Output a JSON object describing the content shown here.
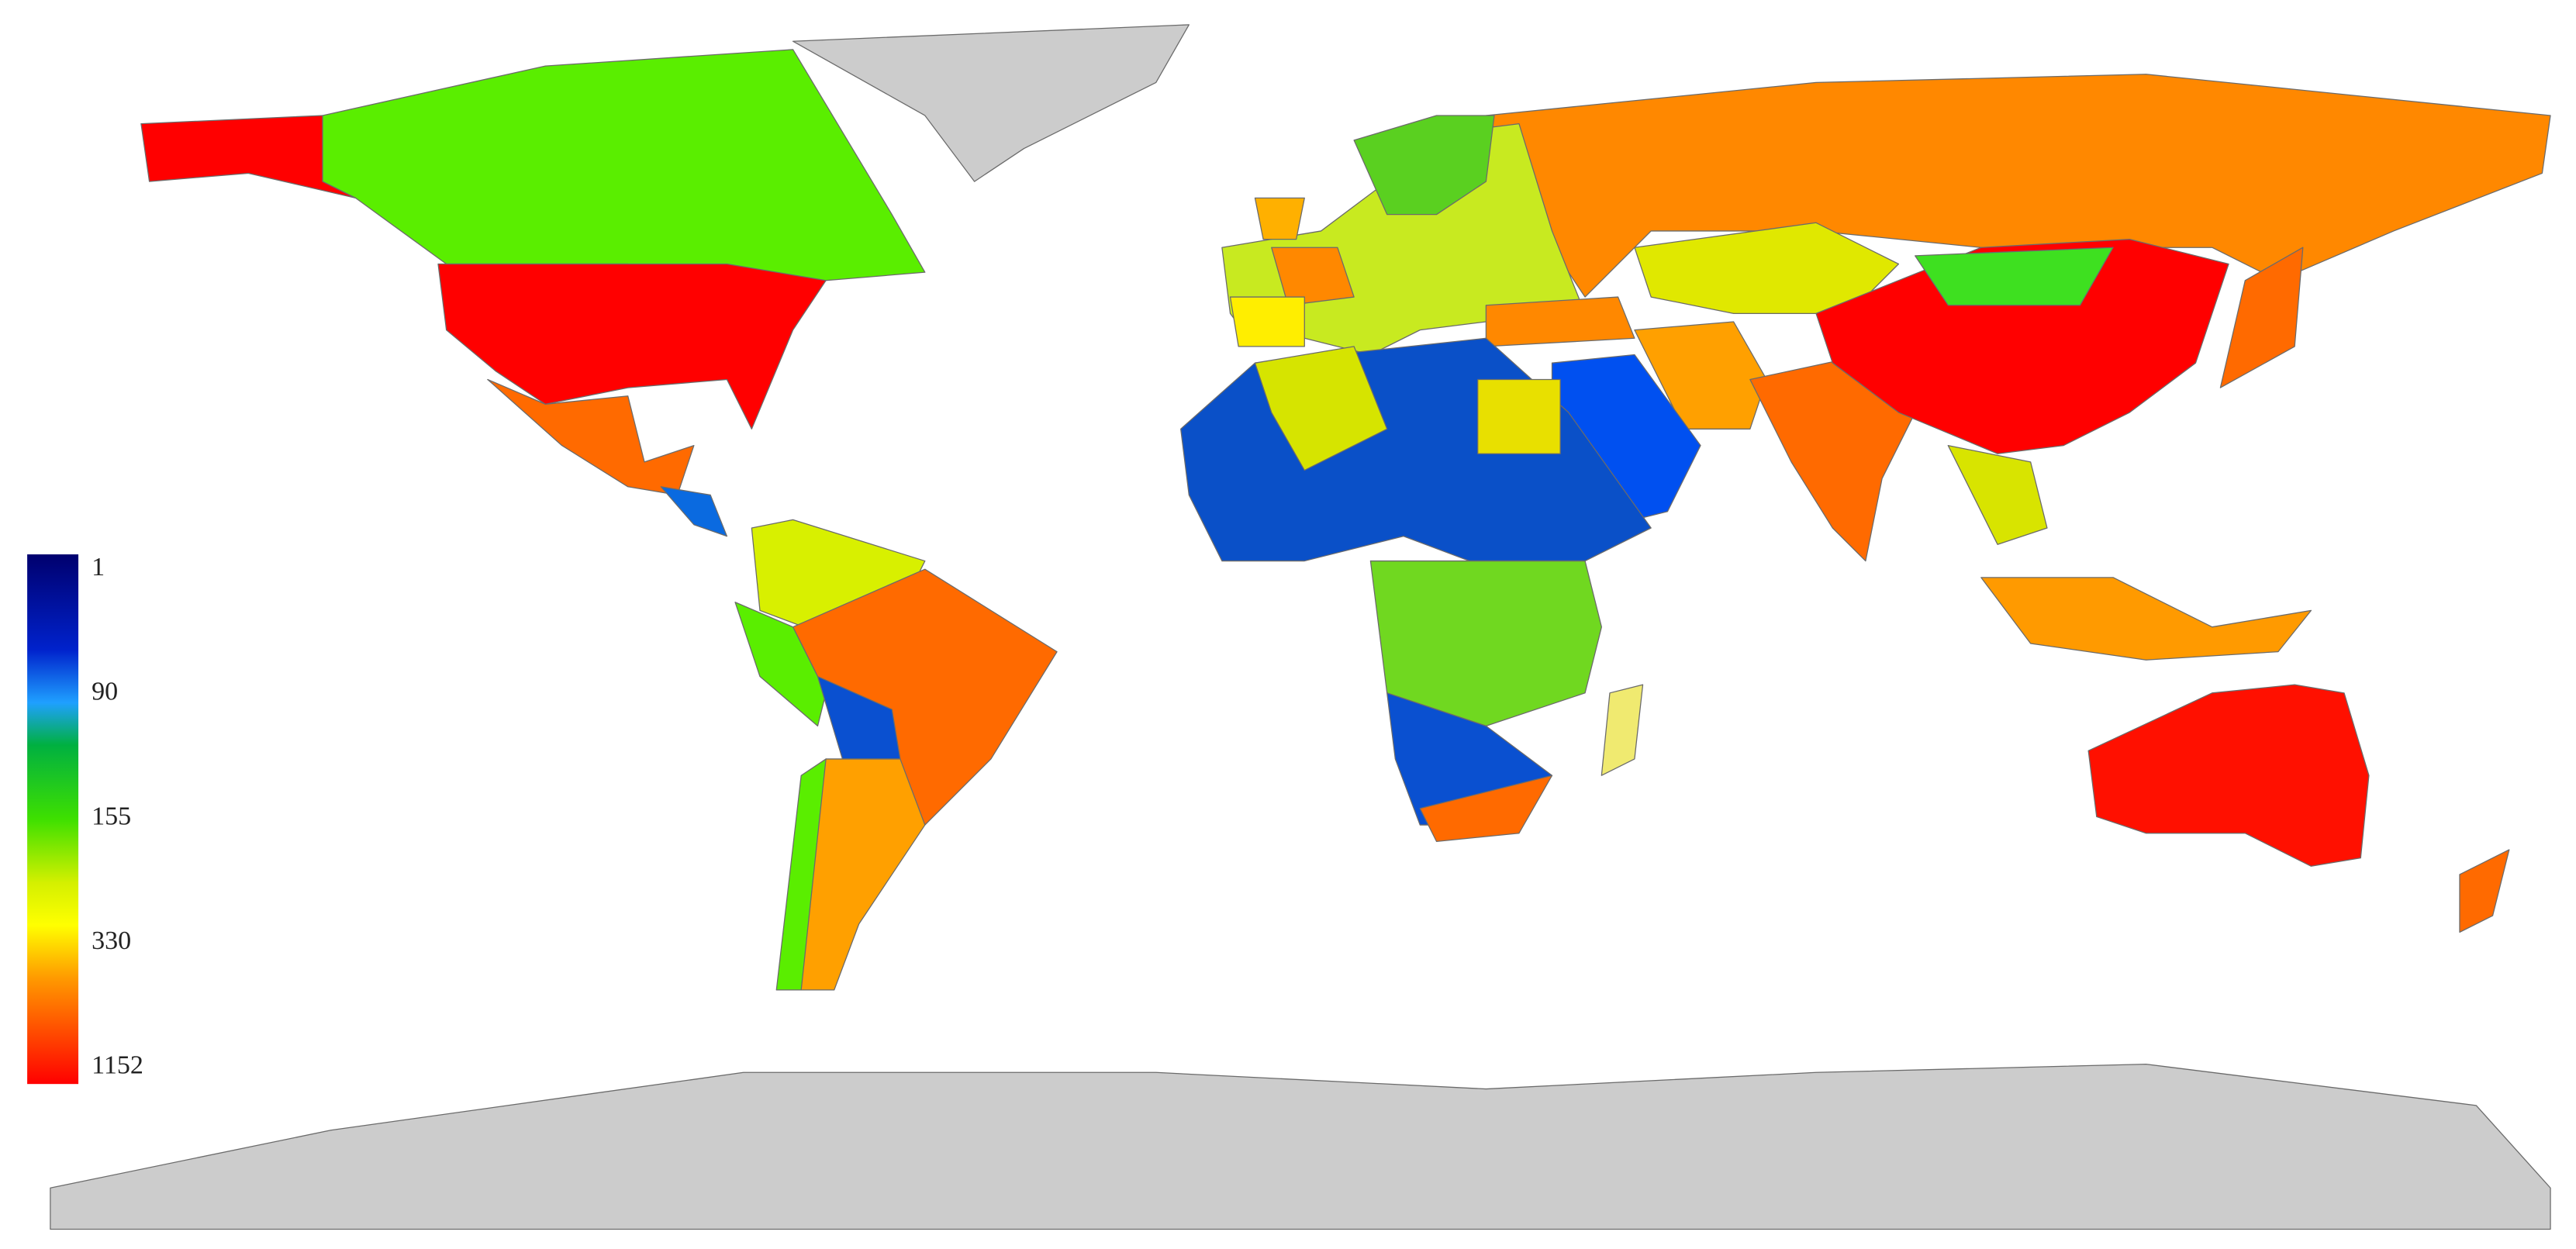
{
  "legend": {
    "ticks": [
      1,
      90,
      155,
      330,
      1152
    ]
  }
}
